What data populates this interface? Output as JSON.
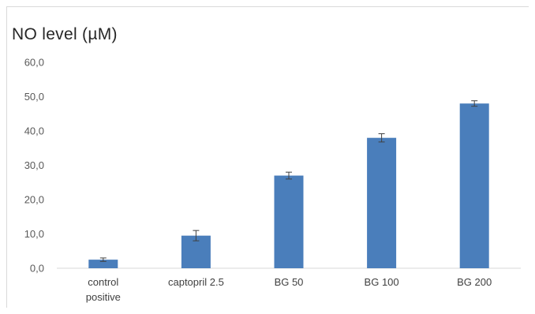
{
  "chart_data": {
    "type": "bar",
    "title": "NO level (µM)",
    "categories": [
      [
        "control",
        "positive"
      ],
      [
        "captopril 2.5"
      ],
      [
        "BG 50"
      ],
      [
        "BG 100"
      ],
      [
        "BG 200"
      ]
    ],
    "values": [
      2.5,
      9.5,
      27.0,
      38.0,
      48.0
    ],
    "errors": [
      0.5,
      1.5,
      1.0,
      1.2,
      0.8
    ],
    "ylim": [
      0,
      60
    ],
    "yticks": [
      0,
      10,
      20,
      30,
      40,
      50,
      60
    ],
    "ytick_labels": [
      "0,0",
      "10,0",
      "20,0",
      "30,0",
      "40,0",
      "50,0",
      "60,0"
    ],
    "bar_color": "#4a7ebb",
    "error_color": "#404040",
    "grid": false,
    "legend": "none"
  }
}
